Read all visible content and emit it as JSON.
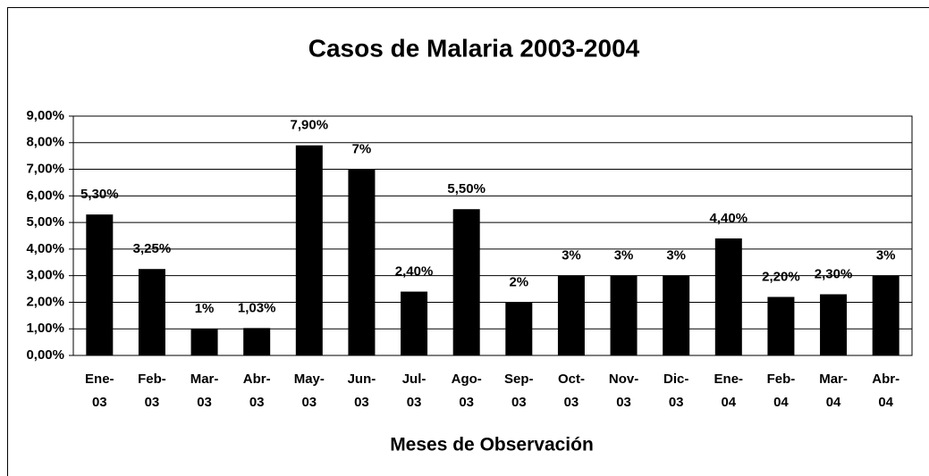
{
  "chart_data": {
    "type": "bar",
    "title": "Casos de Malaria 2003-2004",
    "x_label": "Meses de Observación",
    "categories": [
      "Ene-03",
      "Feb-03",
      "Mar-03",
      "Abr-03",
      "May-03",
      "Jun-03",
      "Jul-03",
      "Ago-03",
      "Sep-03",
      "Oct-03",
      "Nov-03",
      "Dic-03",
      "Ene-04",
      "Feb-04",
      "Mar-04",
      "Abr-04"
    ],
    "values": [
      5.3,
      3.25,
      1,
      1.03,
      7.9,
      7,
      2.4,
      5.5,
      2,
      3,
      3,
      3,
      4.4,
      2.2,
      2.3,
      3
    ],
    "value_labels": [
      "5,30%",
      "3,25%",
      "1%",
      "1,03%",
      "7,90%",
      "7%",
      "2,40%",
      "5,50%",
      "2%",
      "3%",
      "3%",
      "3%",
      "4,40%",
      "2,20%",
      "2,30%",
      "3%"
    ],
    "color": "#000000",
    "ylim": [
      0,
      9
    ],
    "yticks": [
      {
        "value": 0,
        "label": "0,00%"
      },
      {
        "value": 1,
        "label": "1,00%"
      },
      {
        "value": 2,
        "label": "2,00%"
      },
      {
        "value": 3,
        "label": "3,00%"
      },
      {
        "value": 4,
        "label": "4,00%"
      },
      {
        "value": 5,
        "label": "5,00%"
      },
      {
        "value": 6,
        "label": "6,00%"
      },
      {
        "value": 7,
        "label": "7,00%"
      },
      {
        "value": 8,
        "label": "8,00%"
      },
      {
        "value": 9,
        "label": "9,00%"
      }
    ],
    "grid": true
  }
}
